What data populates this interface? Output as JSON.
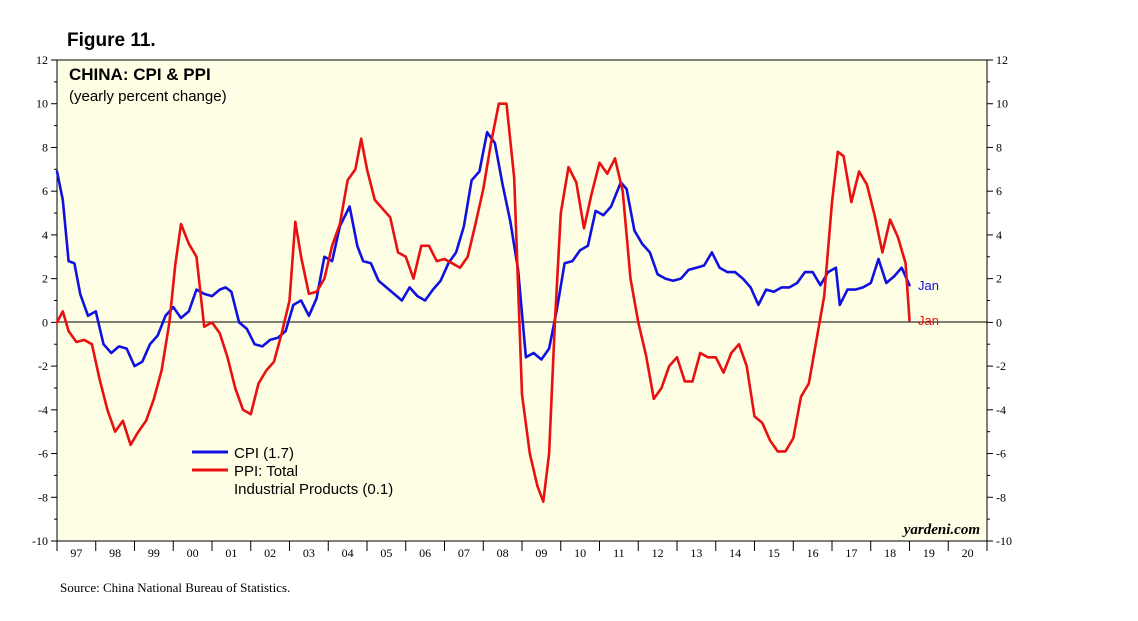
{
  "figure_label": "Figure 11.",
  "source": "Source: China National Bureau of Statistics.",
  "watermark": "yardeni.com",
  "colors": {
    "cpi": "#1010e0",
    "ppi": "#e81010",
    "plot_bg": "#fefee4",
    "zero_line": "#000000"
  },
  "chart_data": {
    "type": "line",
    "title": "CHINA: CPI & PPI",
    "subtitle": "(yearly percent change)",
    "xlabel": "",
    "ylabel": "",
    "ylim": [
      -10,
      12
    ],
    "xlim": [
      1997,
      2021
    ],
    "y_ticks": [
      "12",
      "10",
      "8",
      "6",
      "4",
      "2",
      "0",
      "-2",
      "-4",
      "-6",
      "-8",
      "-10"
    ],
    "y_tick_values": [
      12,
      10,
      8,
      6,
      4,
      2,
      0,
      -2,
      -4,
      -6,
      -8,
      -10
    ],
    "x_labels": [
      "97",
      "98",
      "99",
      "00",
      "01",
      "02",
      "03",
      "04",
      "05",
      "06",
      "07",
      "08",
      "09",
      "10",
      "11",
      "12",
      "13",
      "14",
      "15",
      "16",
      "17",
      "18",
      "19",
      "20"
    ],
    "legend": [
      {
        "key": "cpi",
        "lines": [
          "CPI (1.7)"
        ]
      },
      {
        "key": "ppi",
        "lines": [
          "PPI: Total",
          "Industrial Products (0.1)"
        ]
      }
    ],
    "end_labels": [
      "Jan",
      "Jan"
    ],
    "series": [
      {
        "name": "CPI",
        "key": "cpi",
        "x": [
          1997.0,
          1997.15,
          1997.3,
          1997.45,
          1997.6,
          1997.8,
          1998.0,
          1998.2,
          1998.4,
          1998.6,
          1998.8,
          1999.0,
          1999.2,
          1999.4,
          1999.6,
          1999.8,
          2000.0,
          2000.2,
          2000.4,
          2000.6,
          2000.8,
          2001.0,
          2001.2,
          2001.35,
          2001.5,
          2001.7,
          2001.9,
          2002.1,
          2002.3,
          2002.5,
          2002.7,
          2002.9,
          2003.1,
          2003.3,
          2003.5,
          2003.7,
          2003.9,
          2004.1,
          2004.3,
          2004.55,
          2004.75,
          2004.9,
          2005.1,
          2005.3,
          2005.5,
          2005.7,
          2005.9,
          2006.1,
          2006.3,
          2006.5,
          2006.7,
          2006.9,
          2007.1,
          2007.3,
          2007.5,
          2007.7,
          2007.9,
          2008.1,
          2008.3,
          2008.5,
          2008.7,
          2008.9,
          2009.1,
          2009.3,
          2009.5,
          2009.7,
          2009.9,
          2010.1,
          2010.3,
          2010.5,
          2010.7,
          2010.9,
          2011.1,
          2011.3,
          2011.55,
          2011.7,
          2011.9,
          2012.1,
          2012.3,
          2012.5,
          2012.7,
          2012.9,
          2013.1,
          2013.3,
          2013.5,
          2013.7,
          2013.9,
          2014.1,
          2014.3,
          2014.5,
          2014.7,
          2014.9,
          2015.1,
          2015.3,
          2015.5,
          2015.7,
          2015.9,
          2016.1,
          2016.3,
          2016.5,
          2016.7,
          2016.9,
          2017.1,
          2017.2,
          2017.4,
          2017.6,
          2017.8,
          2018.0,
          2018.2,
          2018.4,
          2018.6,
          2018.8,
          2019.0
        ],
        "values": [
          6.9,
          5.6,
          2.8,
          2.7,
          1.3,
          0.3,
          0.5,
          -1.0,
          -1.4,
          -1.1,
          -1.2,
          -2.0,
          -1.8,
          -1.0,
          -0.6,
          0.3,
          0.7,
          0.2,
          0.5,
          1.5,
          1.3,
          1.2,
          1.5,
          1.6,
          1.4,
          0.0,
          -0.3,
          -1.0,
          -1.1,
          -0.8,
          -0.7,
          -0.4,
          0.8,
          1.0,
          0.3,
          1.1,
          3.0,
          2.8,
          4.4,
          5.3,
          3.5,
          2.8,
          2.7,
          1.9,
          1.6,
          1.3,
          1.0,
          1.6,
          1.2,
          1.0,
          1.5,
          1.9,
          2.7,
          3.2,
          4.4,
          6.5,
          6.9,
          8.7,
          8.2,
          6.3,
          4.6,
          2.4,
          -1.6,
          -1.4,
          -1.7,
          -1.2,
          0.6,
          2.7,
          2.8,
          3.3,
          3.5,
          5.1,
          4.9,
          5.3,
          6.4,
          6.1,
          4.2,
          3.6,
          3.2,
          2.2,
          2.0,
          1.9,
          2.0,
          2.4,
          2.5,
          2.6,
          3.2,
          2.5,
          2.3,
          2.3,
          2.0,
          1.6,
          0.8,
          1.5,
          1.4,
          1.6,
          1.6,
          1.8,
          2.3,
          2.3,
          1.7,
          2.3,
          2.5,
          0.8,
          1.5,
          1.5,
          1.6,
          1.8,
          2.9,
          1.8,
          2.1,
          2.5,
          1.7
        ]
      },
      {
        "name": "PPI: Total Industrial Products",
        "key": "ppi",
        "x": [
          1997.0,
          1997.15,
          1997.3,
          1997.5,
          1997.7,
          1997.9,
          1998.1,
          1998.3,
          1998.5,
          1998.7,
          1998.9,
          1999.1,
          1999.3,
          1999.5,
          1999.7,
          1999.9,
          2000.05,
          2000.2,
          2000.4,
          2000.6,
          2000.8,
          2001.0,
          2001.2,
          2001.4,
          2001.6,
          2001.8,
          2002.0,
          2002.2,
          2002.4,
          2002.6,
          2002.8,
          2003.0,
          2003.15,
          2003.3,
          2003.5,
          2003.7,
          2003.9,
          2004.1,
          2004.3,
          2004.5,
          2004.7,
          2004.85,
          2005.0,
          2005.2,
          2005.4,
          2005.6,
          2005.8,
          2006.0,
          2006.2,
          2006.4,
          2006.6,
          2006.8,
          2007.0,
          2007.2,
          2007.4,
          2007.6,
          2007.8,
          2008.0,
          2008.2,
          2008.4,
          2008.6,
          2008.8,
          2009.0,
          2009.2,
          2009.4,
          2009.55,
          2009.7,
          2009.85,
          2010.0,
          2010.2,
          2010.4,
          2010.6,
          2010.8,
          2011.0,
          2011.2,
          2011.4,
          2011.6,
          2011.8,
          2012.0,
          2012.2,
          2012.4,
          2012.6,
          2012.8,
          2013.0,
          2013.2,
          2013.4,
          2013.6,
          2013.8,
          2014.0,
          2014.2,
          2014.4,
          2014.6,
          2014.8,
          2015.0,
          2015.2,
          2015.4,
          2015.6,
          2015.8,
          2016.0,
          2016.2,
          2016.4,
          2016.6,
          2016.8,
          2017.0,
          2017.15,
          2017.3,
          2017.5,
          2017.7,
          2017.9,
          2018.1,
          2018.3,
          2018.5,
          2018.7,
          2018.9,
          2019.0
        ],
        "values": [
          0.0,
          0.5,
          -0.4,
          -0.9,
          -0.8,
          -1.0,
          -2.6,
          -4.0,
          -5.0,
          -4.5,
          -5.6,
          -5.0,
          -4.5,
          -3.5,
          -2.2,
          0.0,
          2.6,
          4.5,
          3.6,
          3.0,
          -0.2,
          0.0,
          -0.5,
          -1.6,
          -3.0,
          -4.0,
          -4.2,
          -2.8,
          -2.2,
          -1.8,
          -0.5,
          1.0,
          4.6,
          3.0,
          1.3,
          1.4,
          2.0,
          3.5,
          4.5,
          6.5,
          7.0,
          8.4,
          7.0,
          5.6,
          5.2,
          4.8,
          3.2,
          3.0,
          2.0,
          3.5,
          3.5,
          2.8,
          2.9,
          2.7,
          2.5,
          3.0,
          4.5,
          6.1,
          8.2,
          10.0,
          10.0,
          6.6,
          -3.3,
          -6.0,
          -7.5,
          -8.2,
          -6.0,
          0.0,
          5.0,
          7.1,
          6.4,
          4.3,
          5.9,
          7.3,
          6.8,
          7.5,
          6.0,
          2.0,
          0.0,
          -1.5,
          -3.5,
          -3.0,
          -2.0,
          -1.6,
          -2.7,
          -2.7,
          -1.4,
          -1.6,
          -1.6,
          -2.3,
          -1.4,
          -1.0,
          -2.0,
          -4.3,
          -4.6,
          -5.4,
          -5.9,
          -5.9,
          -5.3,
          -3.4,
          -2.8,
          -0.8,
          1.2,
          5.5,
          7.8,
          7.6,
          5.5,
          6.9,
          6.3,
          4.9,
          3.2,
          4.7,
          3.9,
          2.7,
          0.1
        ]
      }
    ]
  }
}
